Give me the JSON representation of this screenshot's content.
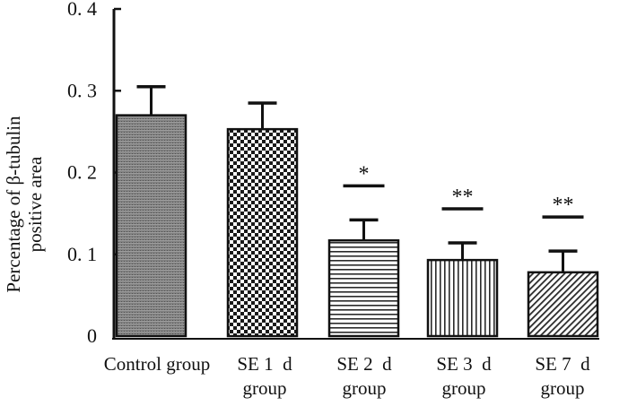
{
  "chart_data": {
    "type": "bar",
    "categories": [
      [
        "Control group"
      ],
      [
        "SE 1  d",
        "group"
      ],
      [
        "SE 2  d",
        "group"
      ],
      [
        "SE 3  d",
        "group"
      ],
      [
        "SE 7  d",
        "group"
      ]
    ],
    "values": [
      0.27,
      0.253,
      0.117,
      0.093,
      0.078
    ],
    "errors": [
      0.035,
      0.032,
      0.025,
      0.021,
      0.026
    ],
    "significance": [
      "",
      "",
      "*",
      "**",
      "**"
    ],
    "ylabel_lines": [
      "Percentage of β-tubulin",
      "positive area"
    ],
    "ylim": [
      0,
      0.4
    ],
    "yticks": [
      "0",
      "0. 1",
      "0. 2",
      "0. 3",
      "0. 4"
    ],
    "ytick_values": [
      0,
      0.1,
      0.2,
      0.3,
      0.4
    ],
    "grid": false,
    "colors": {
      "axis": "#111111",
      "bar_dark": "#3a3a3a",
      "bar_light": "#d8d8d8"
    }
  }
}
